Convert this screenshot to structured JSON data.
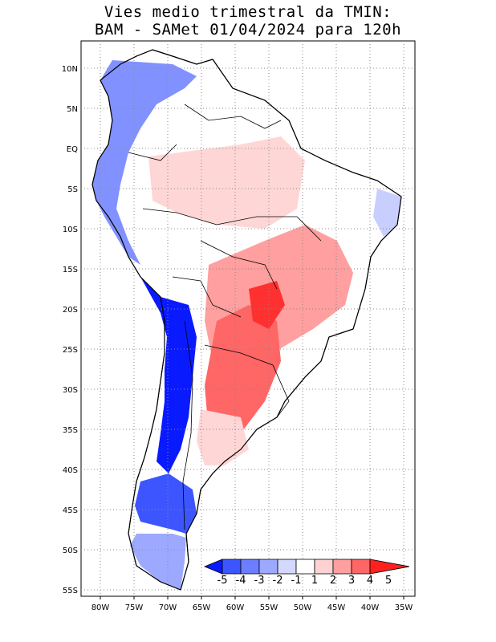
{
  "title": {
    "line1": "Vies medio trimestral da TMIN:",
    "line2": "BAM - SAMet 01/04/2024  para 120h"
  },
  "map": {
    "lon_labels": [
      "80W",
      "75W",
      "70W",
      "65W",
      "60W",
      "55W",
      "50W",
      "45W",
      "40W",
      "35W"
    ],
    "lat_labels": [
      "10N",
      "5N",
      "EQ",
      "5S",
      "10S",
      "15S",
      "20S",
      "25S",
      "30S",
      "35S",
      "40S",
      "45S",
      "50S",
      "55S"
    ],
    "grid": "dotted"
  },
  "colorbar": {
    "labels": [
      "-5",
      "-4",
      "-3",
      "-2",
      "-1",
      "1",
      "2",
      "3",
      "4",
      "5"
    ],
    "colors": [
      "#0a1aff",
      "#3c55ff",
      "#6b7eff",
      "#9ca9ff",
      "#d3d8ff",
      "#ffffff",
      "#ffd2d2",
      "#ff9f9f",
      "#ff6666",
      "#ff2020"
    ]
  },
  "colors": {
    "cold_strong": "#0a1aff",
    "cold_mid": "#6b7eff",
    "cold_light": "#c8cfff",
    "warm_light": "#ffd6d6",
    "warm_mid": "#ff8a8a",
    "warm_strong": "#ff3030",
    "land_neutral": "#ffffff"
  }
}
